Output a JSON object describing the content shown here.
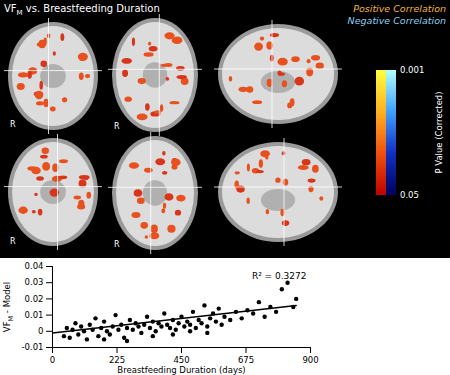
{
  "brain_panel": {
    "title": {
      "text": "VF",
      "subscript": "M",
      "rest": " vs. Breastfeeding Duration"
    },
    "legend": [
      {
        "label": "Positive Correlation",
        "color": "#f2b43c"
      },
      {
        "label": "Negative Correlation",
        "color": "#8ad0f2"
      }
    ],
    "colorbar": {
      "label": "P Value (Corrected)",
      "range": [
        0.001,
        0.05
      ],
      "ticks": [
        0.001,
        0.05
      ]
    },
    "orientation_labels": [
      "R",
      "R",
      "R",
      "R"
    ]
  },
  "chart_data": {
    "type": "scatter",
    "x_label": "Breastfeeding Duration (days)",
    "y_label": {
      "text": "VF",
      "subscript": "M",
      "rest": " - Model"
    },
    "annotation": "R² = 0.3272",
    "color": "#000000",
    "x": [
      40,
      50,
      60,
      70,
      80,
      90,
      100,
      110,
      120,
      130,
      140,
      150,
      160,
      170,
      180,
      190,
      200,
      210,
      220,
      230,
      240,
      250,
      260,
      270,
      280,
      290,
      300,
      310,
      320,
      330,
      340,
      350,
      360,
      370,
      380,
      390,
      400,
      410,
      420,
      430,
      440,
      450,
      460,
      470,
      480,
      490,
      500,
      510,
      520,
      530,
      540,
      550,
      560,
      570,
      580,
      590,
      600,
      620,
      640,
      660,
      680,
      700,
      720,
      740,
      760,
      780,
      800,
      820,
      840,
      850,
      180,
      260,
      350,
      420,
      480,
      540
    ],
    "values": [
      -0.003,
      0.002,
      -0.004,
      0.001,
      0.005,
      -0.002,
      0.003,
      0,
      -0.005,
      0.004,
      0.001,
      0.008,
      -0.003,
      0.002,
      0.006,
      0,
      -0.002,
      0.003,
      0.01,
      0.001,
      0.004,
      -0.004,
      0.002,
      0.007,
      0.001,
      0.005,
      0.003,
      -0.001,
      0.004,
      0.009,
      0.002,
      0.006,
      0,
      0.005,
      0.003,
      0.011,
      0.004,
      0.002,
      0.007,
      0.001,
      0.005,
      0.009,
      0.003,
      0.006,
      0.004,
      0.012,
      0.002,
      0.007,
      0.005,
      0.016,
      0.003,
      0.008,
      0.011,
      0.006,
      0.014,
      0.004,
      0.009,
      0.007,
      0.012,
      0.008,
      0.013,
      0.011,
      0.018,
      0.009,
      0.015,
      0.012,
      0.026,
      0.03,
      0.015,
      0.02,
      -0.005,
      -0.006,
      -0.003,
      -0.002,
      0,
      -0.001
    ],
    "trend_line": {
      "x": [
        0,
        850
      ],
      "values": [
        -0.001,
        0.016
      ]
    },
    "xlim": [
      0,
      900
    ],
    "xticks": [
      0,
      225,
      450,
      675,
      900
    ],
    "ylim": [
      -0.01,
      0.04
    ],
    "yticks": [
      -0.01,
      0,
      0.01,
      0.02,
      0.03,
      0.04
    ],
    "grid": false
  }
}
